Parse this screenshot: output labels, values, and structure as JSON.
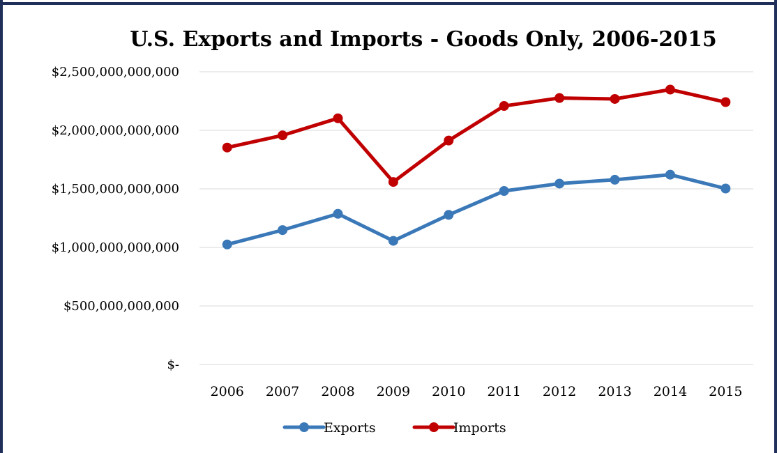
{
  "chart_data": {
    "type": "line",
    "title": "U.S. Exports and Imports - Goods Only, 2006-2015",
    "xlabel": "",
    "ylabel": "",
    "categories": [
      "2006",
      "2007",
      "2008",
      "2009",
      "2010",
      "2011",
      "2012",
      "2013",
      "2014",
      "2015"
    ],
    "series": [
      {
        "name": "Exports",
        "color": "#3a78b8",
        "values": [
          1025000000000,
          1148000000000,
          1287000000000,
          1056000000000,
          1278000000000,
          1482000000000,
          1545000000000,
          1578000000000,
          1621000000000,
          1503000000000
        ]
      },
      {
        "name": "Imports",
        "color": "#c00000",
        "values": [
          1853000000000,
          1957000000000,
          2103000000000,
          1559000000000,
          1913000000000,
          2208000000000,
          2276000000000,
          2268000000000,
          2348000000000,
          2241000000000
        ]
      }
    ],
    "ylim": [
      0,
      2500000000000
    ],
    "ytick_labels": [
      "$-",
      "$500,000,000,000",
      "$1,000,000,000,000",
      "$1,500,000,000,000",
      "$2,000,000,000,000",
      "$2,500,000,000,000"
    ],
    "grid": true,
    "legend_position": "bottom"
  }
}
